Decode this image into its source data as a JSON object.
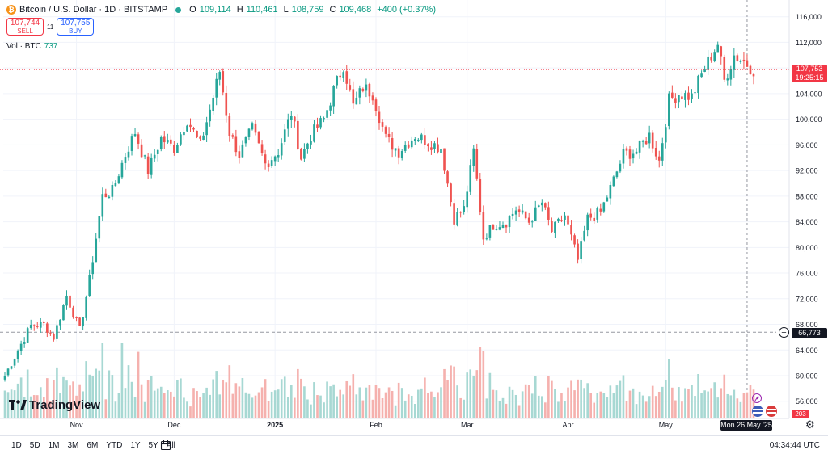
{
  "header": {
    "symbol_title": "Bitcoin / U.S. Dollar · 1D · BITSTAMP",
    "open_label": "O",
    "open": "109,114",
    "high_label": "H",
    "high": "110,461",
    "low_label": "L",
    "low": "108,759",
    "close_label": "C",
    "close": "109,468",
    "change": "+400 (+0.37%)"
  },
  "trade": {
    "sell_price": "107,744",
    "sell_label": "SELL",
    "spread": "11",
    "buy_price": "107,755",
    "buy_label": "BUY"
  },
  "volume_legend": {
    "label": "Vol · BTC",
    "value": "737"
  },
  "logo_text": "TradingView",
  "badges": {
    "last_price": "107,753",
    "countdown": "19:25:15",
    "hline_price": "66,773",
    "last_volume": "203",
    "crosshair_date": "Mon 26 May '25"
  },
  "ranges": [
    "1D",
    "5D",
    "1M",
    "3M",
    "6M",
    "YTD",
    "1Y",
    "5Y",
    "All"
  ],
  "clock": "04:34:44 UTC",
  "colors": {
    "up": "#26a69a",
    "down": "#ef5350",
    "vol_up": "#a7d8d3",
    "vol_down": "#f5b1ae",
    "grid": "#f0f3fa"
  },
  "chart_data": {
    "type": "candlestick",
    "title": "Bitcoin / U.S. Dollar · 1D · BITSTAMP",
    "y_ticks": [
      56000,
      60000,
      64000,
      68000,
      72000,
      76000,
      80000,
      84000,
      88000,
      92000,
      96000,
      100000,
      104000,
      108000,
      112000,
      116000
    ],
    "y_tick_labels": [
      "56,000",
      "60,000",
      "64,000",
      "68,000",
      "72,000",
      "76,000",
      "80,000",
      "84,000",
      "88,000",
      "92,000",
      "96,000",
      "100,000",
      "104,000",
      "108,000",
      "112,000",
      "116,000"
    ],
    "ylim": [
      52000,
      117500
    ],
    "x_range_days": [
      0,
      235
    ],
    "x_ticks": [
      {
        "label": "Nov",
        "day": 22
      },
      {
        "label": "Dec",
        "day": 52
      },
      {
        "label": "2025",
        "day": 83
      },
      {
        "label": "Feb",
        "day": 114
      },
      {
        "label": "Mar",
        "day": 142
      },
      {
        "label": "Apr",
        "day": 173
      },
      {
        "label": "May",
        "day": 203
      }
    ],
    "last_price": 107753,
    "horizontal_line": 66773,
    "crosshair_day": 228,
    "anchors": [
      [
        0,
        60000
      ],
      [
        4,
        64000
      ],
      [
        8,
        67800
      ],
      [
        12,
        68000
      ],
      [
        15,
        66000
      ],
      [
        19,
        72500
      ],
      [
        23,
        67000
      ],
      [
        26,
        75000
      ],
      [
        30,
        88000
      ],
      [
        33,
        88800
      ],
      [
        37,
        94500
      ],
      [
        40,
        98000
      ],
      [
        44,
        92000
      ],
      [
        48,
        97000
      ],
      [
        52,
        95500
      ],
      [
        56,
        100000
      ],
      [
        60,
        96000
      ],
      [
        63,
        101500
      ],
      [
        66,
        107500
      ],
      [
        69,
        98000
      ],
      [
        72,
        94500
      ],
      [
        76,
        98500
      ],
      [
        80,
        93000
      ],
      [
        84,
        95000
      ],
      [
        88,
        101000
      ],
      [
        91,
        94000
      ],
      [
        94,
        97500
      ],
      [
        98,
        100000
      ],
      [
        101,
        104500
      ],
      [
        104,
        108500
      ],
      [
        107,
        102000
      ],
      [
        110,
        105000
      ],
      [
        113,
        104000
      ],
      [
        117,
        97000
      ],
      [
        121,
        95000
      ],
      [
        126,
        97500
      ],
      [
        130,
        96500
      ],
      [
        134,
        95500
      ],
      [
        138,
        84500
      ],
      [
        141,
        86000
      ],
      [
        144,
        95000
      ],
      [
        147,
        81500
      ],
      [
        150,
        83500
      ],
      [
        154,
        84000
      ],
      [
        157,
        86000
      ],
      [
        161,
        84000
      ],
      [
        165,
        87000
      ],
      [
        168,
        82500
      ],
      [
        172,
        85000
      ],
      [
        176,
        78000
      ],
      [
        179,
        84500
      ],
      [
        183,
        85500
      ],
      [
        187,
        90500
      ],
      [
        190,
        94500
      ],
      [
        194,
        95000
      ],
      [
        198,
        97500
      ],
      [
        201,
        93500
      ],
      [
        204,
        103000
      ],
      [
        207,
        104000
      ],
      [
        211,
        103500
      ],
      [
        214,
        107000
      ],
      [
        217,
        110000
      ],
      [
        219,
        111800
      ],
      [
        221,
        106000
      ],
      [
        224,
        110000
      ],
      [
        227,
        109000
      ],
      [
        230,
        107750
      ]
    ],
    "volume_ylim": [
      0,
      12000
    ]
  }
}
